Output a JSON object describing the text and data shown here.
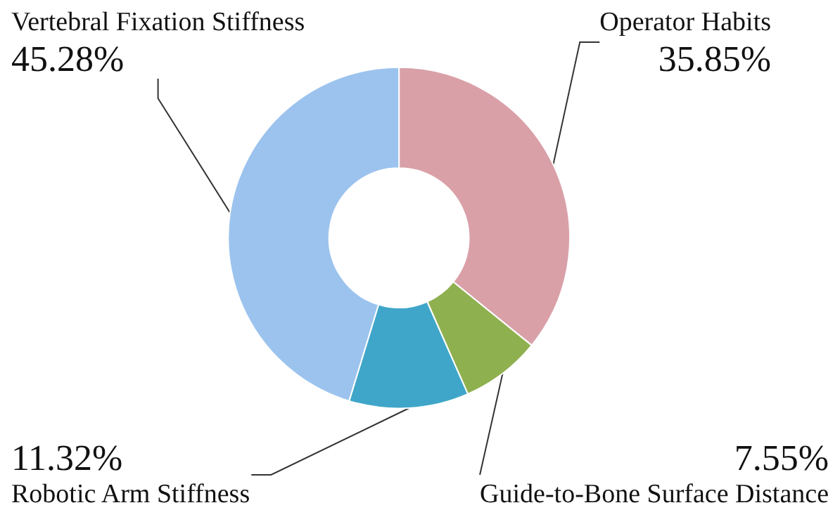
{
  "chart_data": {
    "type": "donut",
    "categories": [
      "Operator Habits",
      "Guide-to-Bone Surface Distance",
      "Robotic Arm Stiffness",
      "Vertebral Fixation Stiffness"
    ],
    "values": [
      35.85,
      7.55,
      11.32,
      45.28
    ],
    "value_labels": [
      "35.85%",
      "7.55%",
      "11.32%",
      "45.28%"
    ],
    "colors": [
      "#d9a0a8",
      "#8fb04f",
      "#3fa6c9",
      "#9cc3ee"
    ],
    "legend": false
  }
}
